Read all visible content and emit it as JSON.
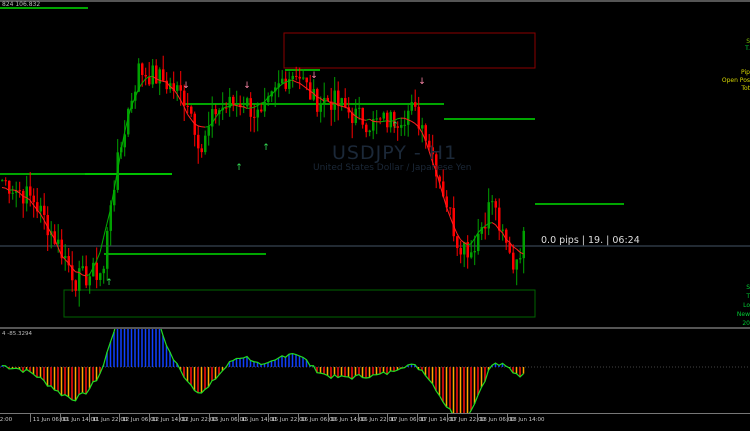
{
  "header": {
    "price_label": "824 106.832"
  },
  "symbol": {
    "title": "USDJPY - H1",
    "description": "United States Dollar / Japanese Yen"
  },
  "timer": "0.0 pips | 19. | 06:24",
  "right_panel_top": [
    {
      "text": "S",
      "color": "#7fbf00"
    },
    {
      "text": "T.",
      "color": "#00cc33"
    },
    {
      "text": "Pip",
      "color": "#d6d600"
    },
    {
      "text": "Open Pos",
      "color": "#d6d600"
    },
    {
      "text": "Tot",
      "color": "#d6d600"
    }
  ],
  "right_panel_bottom": [
    {
      "text": "S",
      "color": "#00cc33"
    },
    {
      "text": "T",
      "color": "#00cc33"
    },
    {
      "text": "Lo",
      "color": "#00cc33"
    },
    {
      "text": "New",
      "color": "#00cc33"
    },
    {
      "text": "20",
      "color": "#00cc33"
    }
  ],
  "sub_window": {
    "label": "4 -85.3294"
  },
  "time_axis": [
    "n 22:00",
    "11 Jun 06:00",
    "11 Jun 14:00",
    "11 Jun 22:00",
    "12 Jun 06:00",
    "12 Jun 14:00",
    "12 Jun 22:00",
    "15 Jun 06:00",
    "15 Jun 14:00",
    "15 Jun 22:00",
    "16 Jun 06:00",
    "16 Jun 14:00",
    "16 Jun 22:00",
    "17 Jun 06:00",
    "17 Jun 14:00",
    "17 Jun 22:00",
    "18 Jun 06:00",
    "18 Jun 14:00"
  ],
  "colors": {
    "bull": "#00a000",
    "bear": "#ff0000",
    "ma": "#ff2020",
    "ma_up": "#00b000",
    "level": "#00dd00",
    "box_red": "#8b0000",
    "box_green": "#006400",
    "arrow_up": "#33dd55",
    "arrow_down": "#ff88aa",
    "hist_blue": "#1040ff",
    "hist_red": "#ff1010",
    "hist_orange": "#ffa500",
    "hist_line": "#22dd22"
  },
  "chart_data": {
    "type": "candlestick",
    "price_keypoints": [
      [
        0,
        106.1
      ],
      [
        9,
        106.0
      ],
      [
        17,
        105.75
      ],
      [
        21,
        105.6
      ],
      [
        29,
        105.65
      ],
      [
        31,
        106.0
      ],
      [
        36,
        106.45
      ],
      [
        39,
        106.65
      ],
      [
        46,
        106.6
      ],
      [
        53,
        106.5
      ],
      [
        57,
        106.25
      ],
      [
        61,
        106.45
      ],
      [
        69,
        106.5
      ],
      [
        74,
        106.4
      ],
      [
        80,
        106.6
      ],
      [
        84,
        106.65
      ],
      [
        89,
        106.5
      ],
      [
        94,
        106.5
      ],
      [
        100,
        106.43
      ],
      [
        106,
        106.38
      ],
      [
        111,
        106.4
      ],
      [
        117,
        106.45
      ],
      [
        121,
        106.35
      ],
      [
        126,
        106.05
      ],
      [
        130,
        105.8
      ],
      [
        134,
        105.75
      ],
      [
        140,
        106.0
      ],
      [
        143,
        105.8
      ],
      [
        146,
        105.68
      ],
      [
        149,
        105.8
      ]
    ]
  }
}
